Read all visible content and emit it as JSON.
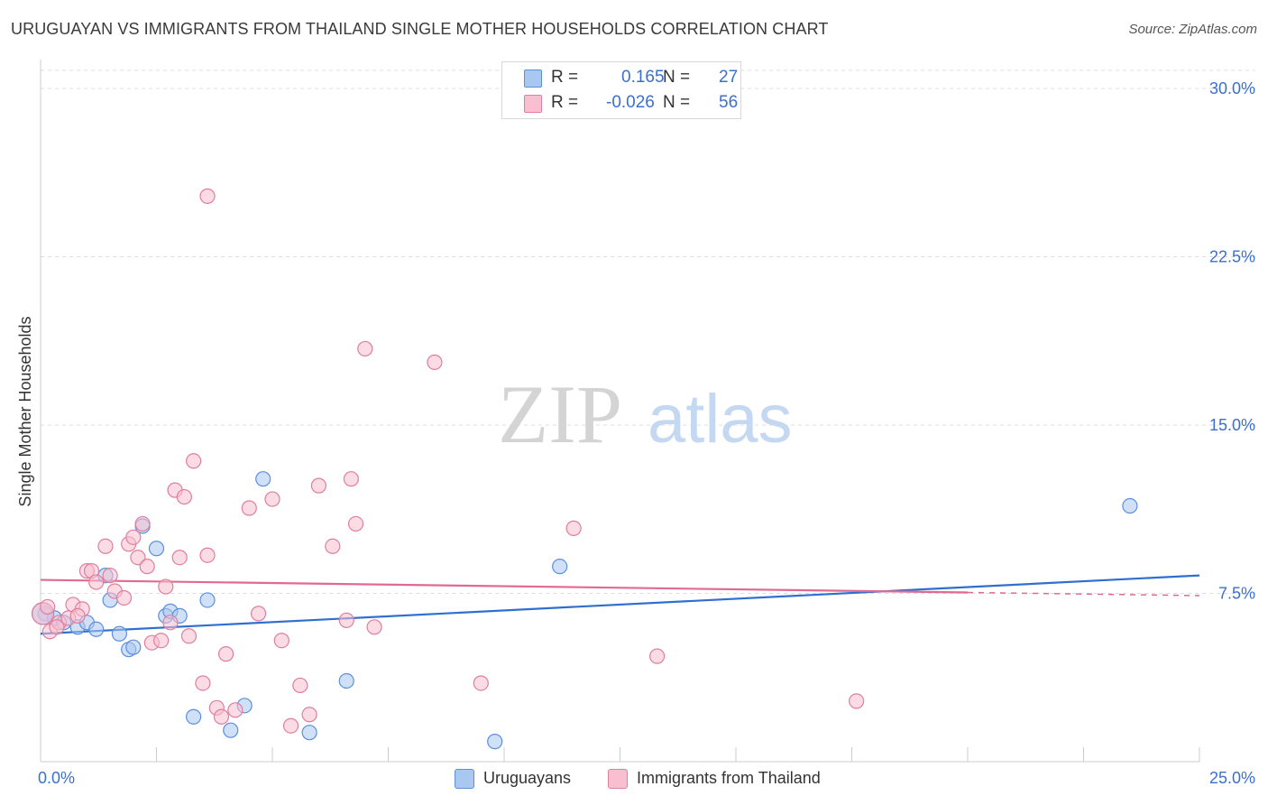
{
  "title": "URUGUAYAN VS IMMIGRANTS FROM THAILAND SINGLE MOTHER HOUSEHOLDS CORRELATION CHART",
  "source": "Source: ZipAtlas.com",
  "watermark": {
    "zip": "ZIP",
    "atlas": "atlas"
  },
  "legend": {
    "r_label": "R =",
    "n_label": "N =",
    "series": [
      {
        "name": "Uruguayans",
        "r": "0.165",
        "n": "27",
        "fill": "#a9c8f0",
        "stroke": "#5b8fe0"
      },
      {
        "name": "Immigrants from Thailand",
        "r": "-0.026",
        "n": "56",
        "fill": "#f8bfd0",
        "stroke": "#e07e9e"
      }
    ]
  },
  "colors": {
    "blue_line": "#2f6fd0",
    "pink_line": "#e06a92",
    "axis_text": "#3b6fd0",
    "grid": "#dddddd"
  },
  "chart_data": {
    "type": "scatter",
    "title": "URUGUAYAN VS IMMIGRANTS FROM THAILAND SINGLE MOTHER HOUSEHOLDS CORRELATION CHART",
    "xlabel": "",
    "ylabel": "Single Mother Households",
    "xlim": [
      0,
      25
    ],
    "ylim": [
      0,
      30
    ],
    "x_tick_labels": {
      "min": "0.0%",
      "max": "25.0%"
    },
    "y_ticks": [
      {
        "value": 7.5,
        "label": "7.5%"
      },
      {
        "value": 15.0,
        "label": "15.0%"
      },
      {
        "value": 22.5,
        "label": "22.5%"
      },
      {
        "value": 30.0,
        "label": "30.0%"
      }
    ],
    "series": [
      {
        "name": "Uruguayans",
        "trend": {
          "x": [
            0,
            25
          ],
          "y": [
            5.7,
            8.3
          ],
          "dashed_from": null
        },
        "points": [
          {
            "x": 0.1,
            "y": 6.6
          },
          {
            "x": 0.3,
            "y": 6.4
          },
          {
            "x": 0.5,
            "y": 6.2
          },
          {
            "x": 0.8,
            "y": 6.0
          },
          {
            "x": 1.0,
            "y": 6.2
          },
          {
            "x": 1.2,
            "y": 5.9
          },
          {
            "x": 1.4,
            "y": 8.3
          },
          {
            "x": 1.5,
            "y": 7.2
          },
          {
            "x": 1.7,
            "y": 5.7
          },
          {
            "x": 1.9,
            "y": 5.0
          },
          {
            "x": 2.0,
            "y": 5.1
          },
          {
            "x": 2.2,
            "y": 10.5
          },
          {
            "x": 2.5,
            "y": 9.5
          },
          {
            "x": 2.7,
            "y": 6.5
          },
          {
            "x": 2.8,
            "y": 6.7
          },
          {
            "x": 3.0,
            "y": 6.5
          },
          {
            "x": 3.3,
            "y": 2.0
          },
          {
            "x": 3.6,
            "y": 7.2
          },
          {
            "x": 4.1,
            "y": 1.4
          },
          {
            "x": 4.4,
            "y": 2.5
          },
          {
            "x": 4.8,
            "y": 12.6
          },
          {
            "x": 5.8,
            "y": 1.3
          },
          {
            "x": 6.6,
            "y": 3.6
          },
          {
            "x": 9.8,
            "y": 0.9
          },
          {
            "x": 11.2,
            "y": 8.7
          },
          {
            "x": 23.5,
            "y": 11.4
          },
          {
            "x": 0.05,
            "y": 6.6
          }
        ]
      },
      {
        "name": "Immigrants from Thailand",
        "trend": {
          "x": [
            0,
            25
          ],
          "y": [
            8.1,
            7.4
          ],
          "dashed_from": 20.0
        },
        "points": [
          {
            "x": 0.05,
            "y": 6.6
          },
          {
            "x": 0.2,
            "y": 5.8
          },
          {
            "x": 0.4,
            "y": 6.2
          },
          {
            "x": 0.6,
            "y": 6.4
          },
          {
            "x": 0.7,
            "y": 7.0
          },
          {
            "x": 0.9,
            "y": 6.8
          },
          {
            "x": 1.0,
            "y": 8.5
          },
          {
            "x": 1.1,
            "y": 8.5
          },
          {
            "x": 1.2,
            "y": 8.0
          },
          {
            "x": 1.4,
            "y": 9.6
          },
          {
            "x": 1.6,
            "y": 7.6
          },
          {
            "x": 1.8,
            "y": 7.3
          },
          {
            "x": 1.9,
            "y": 9.7
          },
          {
            "x": 2.0,
            "y": 10.0
          },
          {
            "x": 2.1,
            "y": 9.1
          },
          {
            "x": 2.3,
            "y": 8.7
          },
          {
            "x": 2.4,
            "y": 5.3
          },
          {
            "x": 2.6,
            "y": 5.4
          },
          {
            "x": 2.7,
            "y": 7.8
          },
          {
            "x": 2.8,
            "y": 6.2
          },
          {
            "x": 2.9,
            "y": 12.1
          },
          {
            "x": 3.0,
            "y": 9.1
          },
          {
            "x": 3.1,
            "y": 11.8
          },
          {
            "x": 3.2,
            "y": 5.6
          },
          {
            "x": 3.3,
            "y": 13.4
          },
          {
            "x": 3.5,
            "y": 3.5
          },
          {
            "x": 3.6,
            "y": 9.2
          },
          {
            "x": 3.8,
            "y": 2.4
          },
          {
            "x": 3.9,
            "y": 2.0
          },
          {
            "x": 4.0,
            "y": 4.8
          },
          {
            "x": 4.2,
            "y": 2.3
          },
          {
            "x": 4.5,
            "y": 11.3
          },
          {
            "x": 4.7,
            "y": 6.6
          },
          {
            "x": 5.0,
            "y": 11.7
          },
          {
            "x": 5.2,
            "y": 5.4
          },
          {
            "x": 5.4,
            "y": 1.6
          },
          {
            "x": 5.6,
            "y": 3.4
          },
          {
            "x": 5.8,
            "y": 2.1
          },
          {
            "x": 6.0,
            "y": 12.3
          },
          {
            "x": 6.3,
            "y": 9.6
          },
          {
            "x": 6.6,
            "y": 6.3
          },
          {
            "x": 6.7,
            "y": 12.6
          },
          {
            "x": 6.8,
            "y": 10.6
          },
          {
            "x": 7.0,
            "y": 18.4
          },
          {
            "x": 7.2,
            "y": 6.0
          },
          {
            "x": 8.5,
            "y": 17.8
          },
          {
            "x": 9.5,
            "y": 3.5
          },
          {
            "x": 11.5,
            "y": 10.4
          },
          {
            "x": 13.3,
            "y": 4.7
          },
          {
            "x": 17.6,
            "y": 2.7
          },
          {
            "x": 3.6,
            "y": 25.2
          },
          {
            "x": 1.5,
            "y": 8.3
          },
          {
            "x": 0.35,
            "y": 6.0
          },
          {
            "x": 0.8,
            "y": 6.5
          },
          {
            "x": 2.2,
            "y": 10.6
          },
          {
            "x": 0.15,
            "y": 6.9
          }
        ]
      }
    ]
  }
}
